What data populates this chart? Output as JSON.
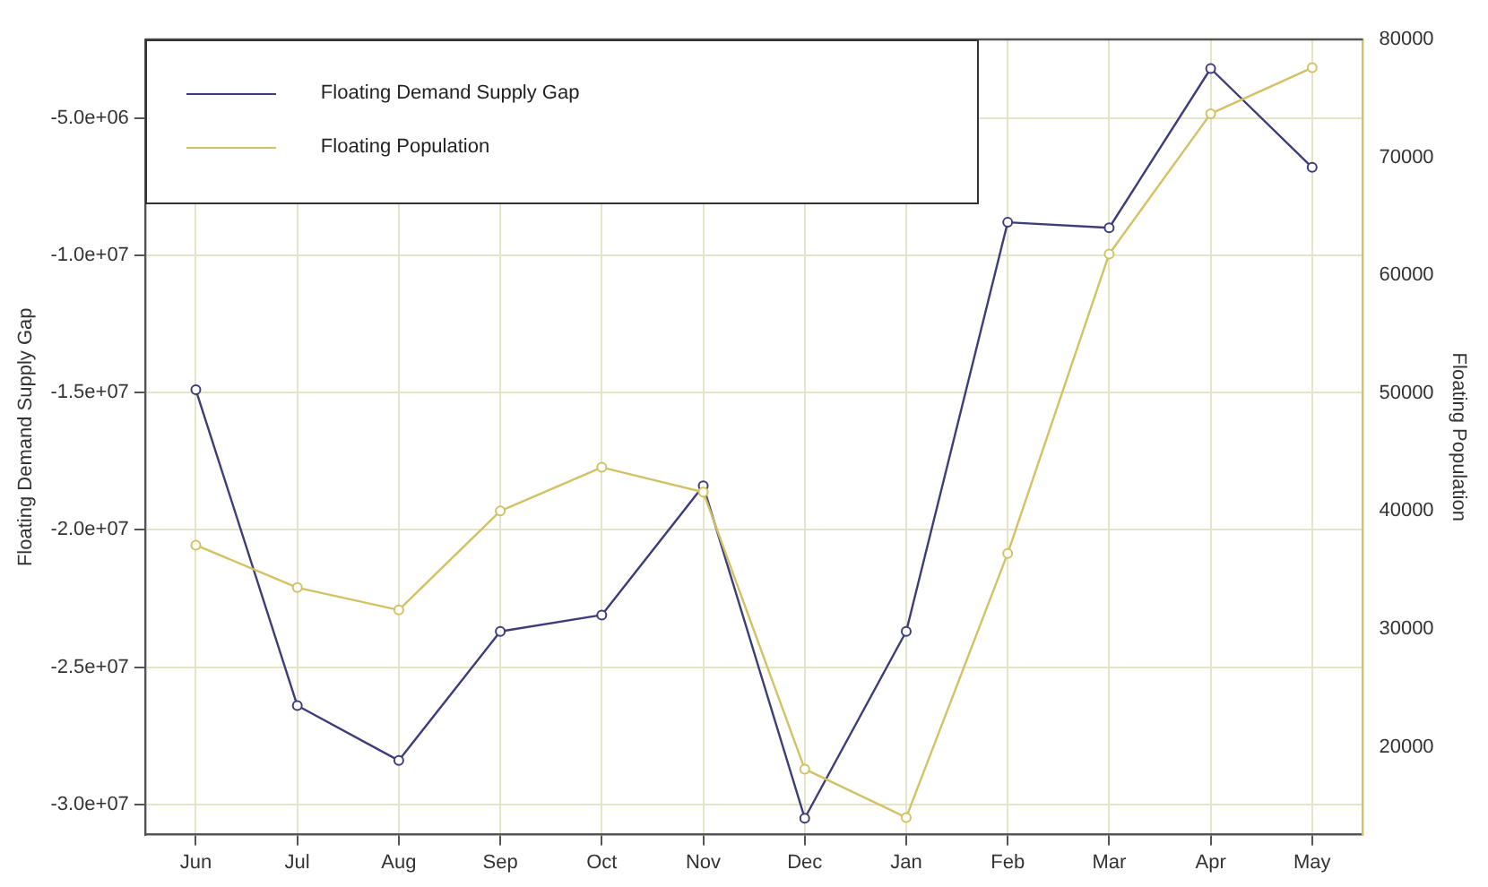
{
  "chart_data": {
    "type": "line",
    "xlabel": null,
    "ylabel": "Floating Demand Supply Gap",
    "y2label": "Floating Population",
    "categories": [
      "Jun",
      "Jul",
      "Aug",
      "Sep",
      "Oct",
      "Nov",
      "Dec",
      "Jan",
      "Feb",
      "Mar",
      "Apr",
      "May"
    ],
    "series": [
      {
        "name": "Floating Demand Supply Gap",
        "color": "#3d3d7a",
        "values": [
          -14900000,
          -26400000,
          -28400000,
          -23700000,
          -23100000,
          -18400000,
          -30500000,
          -23700000,
          -8800000,
          -9000000,
          -3200000,
          -6800000
        ]
      },
      {
        "name": "Floating Population",
        "color": "#d2c264",
        "axis": "y2",
        "values": [
          37100,
          33500,
          31600,
          40000,
          43700,
          41600,
          18100,
          14000,
          36400,
          61800,
          73700,
          77600
        ]
      }
    ],
    "ylim": [
      -31100000,
      -2140000
    ],
    "yticks": [
      {
        "value": -30000000,
        "label": "-3.0e+07"
      },
      {
        "value": -25000000,
        "label": "-2.5e+07"
      },
      {
        "value": -20000000,
        "label": "-2.0e+07"
      },
      {
        "value": -15000000,
        "label": "-1.5e+07"
      },
      {
        "value": -10000000,
        "label": "-1.0e+07"
      },
      {
        "value": -5000000,
        "label": "-5.0e+06"
      }
    ],
    "y2lim": [
      12540,
      80000
    ],
    "y2ticks": [
      20000,
      30000,
      40000,
      50000,
      60000,
      70000,
      80000
    ],
    "grid": true,
    "legend": "top left",
    "marker": "circle",
    "line_style": "solid"
  }
}
